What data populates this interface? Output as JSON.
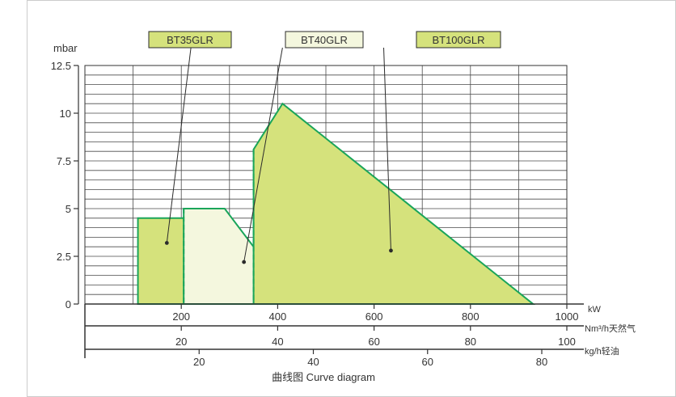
{
  "chart_data": {
    "type": "area",
    "title": "",
    "caption": "曲线图 Curve diagram",
    "ylabel": "mbar",
    "ylim": [
      0,
      12.5
    ],
    "y_ticks": [
      "0",
      "2.5",
      "5",
      "7.5",
      "10",
      "12.5"
    ],
    "x_axis_kw": {
      "unit": "kW",
      "range": [
        0,
        1000
      ],
      "ticks": [
        {
          "v": 200,
          "label": "200"
        },
        {
          "v": 400,
          "label": "400"
        },
        {
          "v": 600,
          "label": "600"
        },
        {
          "v": 800,
          "label": "800"
        },
        {
          "v": 1000,
          "label": "1000"
        }
      ]
    },
    "x_axis_gas": {
      "unit": "Nm³/h天然气",
      "ticks": [
        {
          "kw": 200,
          "label": "20"
        },
        {
          "kw": 400,
          "label": "40"
        },
        {
          "kw": 600,
          "label": "60"
        },
        {
          "kw": 800,
          "label": "80"
        },
        {
          "kw": 1000,
          "label": "100"
        }
      ]
    },
    "x_axis_oil": {
      "unit": "kg/h轻油",
      "ticks": [
        {
          "kw": 237,
          "label": "20"
        },
        {
          "kw": 474,
          "label": "40"
        },
        {
          "kw": 711,
          "label": "60"
        },
        {
          "kw": 948,
          "label": "80"
        }
      ]
    },
    "series": [
      {
        "name": "BT35GLR",
        "fill": "#d5e27c",
        "points": [
          [
            110,
            0
          ],
          [
            110,
            4.5
          ],
          [
            220,
            4.5
          ],
          [
            340,
            0
          ]
        ],
        "dashed_x": null,
        "leader_label_at": [
          220,
          16
        ],
        "leader_dot_at": [
          170,
          3.2
        ]
      },
      {
        "name": "BT40GLR",
        "fill": "#f4f7de",
        "points": [
          [
            205,
            0
          ],
          [
            205,
            5
          ],
          [
            290,
            5
          ],
          [
            440,
            0
          ]
        ],
        "dashed_x": 205,
        "leader_label_at": [
          410,
          16
        ],
        "leader_dot_at": [
          330,
          2.2
        ]
      },
      {
        "name": "BT100GLR",
        "fill": "#d5e27c",
        "points": [
          [
            350,
            0
          ],
          [
            350,
            8.1
          ],
          [
            410,
            10.5
          ],
          [
            930,
            0
          ]
        ],
        "dashed_x": 350,
        "leader_label_at": [
          620,
          16
        ],
        "leader_dot_at": [
          635,
          2.8
        ]
      }
    ],
    "colors": {
      "series_edge": "#1aa55a",
      "grid": "#4a4a4a",
      "axis": "#333333",
      "frame": "#cccccc"
    },
    "grid": true
  }
}
